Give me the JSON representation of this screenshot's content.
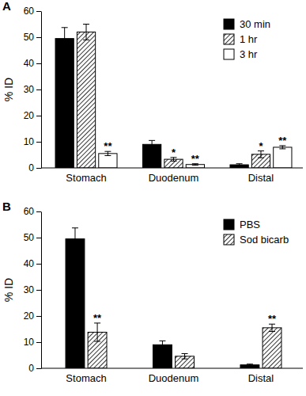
{
  "chart_data": [
    {
      "type": "bar",
      "title": "A",
      "ylabel": "% ID",
      "categories": [
        "Stomach",
        "Duodenum",
        "Distal"
      ],
      "series": [
        {
          "name": "30 min",
          "color": "#000000",
          "marker": "solid",
          "values": [
            49.5,
            9.0,
            1.2
          ],
          "errors": [
            4.2,
            1.5,
            0.4
          ],
          "significance": [
            null,
            null,
            null
          ]
        },
        {
          "name": "1 hr",
          "color": "#000000",
          "marker": "hatch",
          "values": [
            52.0,
            3.3,
            5.2
          ],
          "errors": [
            3.0,
            0.7,
            1.3
          ],
          "significance": [
            null,
            "*",
            "*"
          ]
        },
        {
          "name": "3 hr",
          "color": "#ffffff",
          "marker": "solid",
          "values": [
            5.5,
            1.3,
            7.9
          ],
          "errors": [
            0.8,
            0.3,
            0.6
          ],
          "significance": [
            "**",
            "**",
            "**"
          ]
        }
      ],
      "ylim": [
        0,
        60
      ],
      "yticks": [
        0,
        10,
        20,
        30,
        40,
        50,
        60
      ],
      "legend": "top-right"
    },
    {
      "type": "bar",
      "title": "B",
      "ylabel": "% ID",
      "categories": [
        "Stomach",
        "Duodenum",
        "Distal"
      ],
      "series": [
        {
          "name": "PBS",
          "color": "#000000",
          "marker": "solid",
          "values": [
            49.5,
            9.0,
            1.3
          ],
          "errors": [
            4.2,
            1.5,
            0.3
          ],
          "significance": [
            null,
            null,
            null
          ]
        },
        {
          "name": "Sod bicarb",
          "color": "#000000",
          "marker": "hatch",
          "values": [
            13.8,
            4.6,
            15.5
          ],
          "errors": [
            3.5,
            1.0,
            1.4
          ],
          "significance": [
            "**",
            null,
            "**"
          ]
        }
      ],
      "ylim": [
        0,
        60
      ],
      "yticks": [
        0,
        10,
        20,
        30,
        40,
        50,
        60
      ],
      "legend": "top-right"
    }
  ]
}
